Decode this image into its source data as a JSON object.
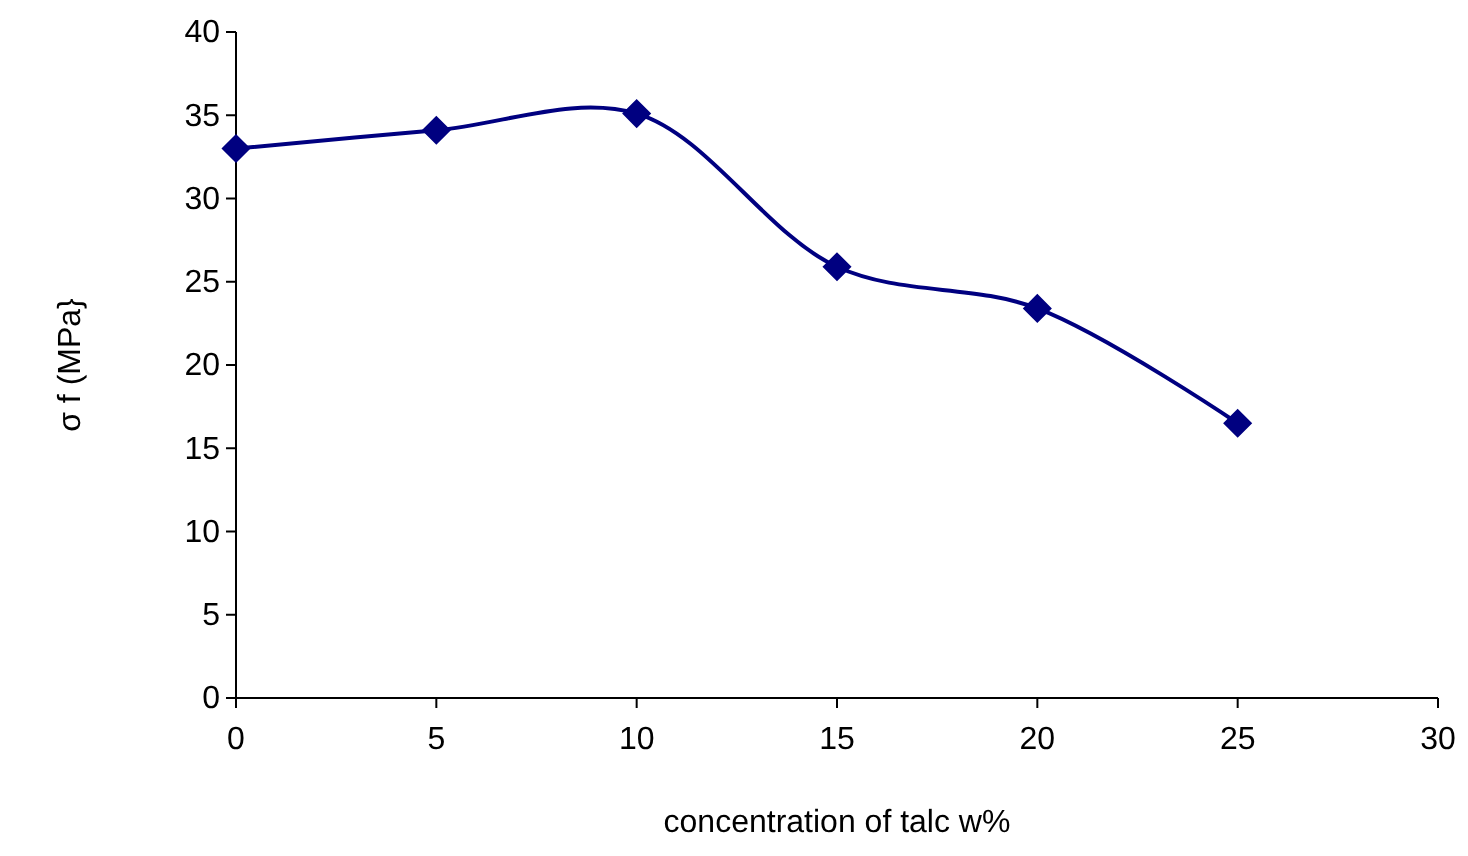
{
  "chart_data": {
    "type": "line",
    "xlabel": "concentration of talc w%",
    "ylabel": "σ f (MPa}",
    "x": [
      0,
      5,
      10,
      15,
      20,
      25
    ],
    "series": [
      {
        "color": "#000080",
        "values": [
          33,
          34.1,
          35.1,
          25.9,
          23.4,
          16.5
        ]
      }
    ],
    "xlim": [
      0,
      30
    ],
    "xticks": [
      0,
      5,
      10,
      15,
      20,
      25,
      30
    ],
    "ylim": [
      0,
      40
    ],
    "yticks": [
      0,
      5,
      10,
      15,
      20,
      25,
      30,
      35,
      40
    ],
    "grid": false,
    "marker": "diamond",
    "line_style": "solid"
  }
}
